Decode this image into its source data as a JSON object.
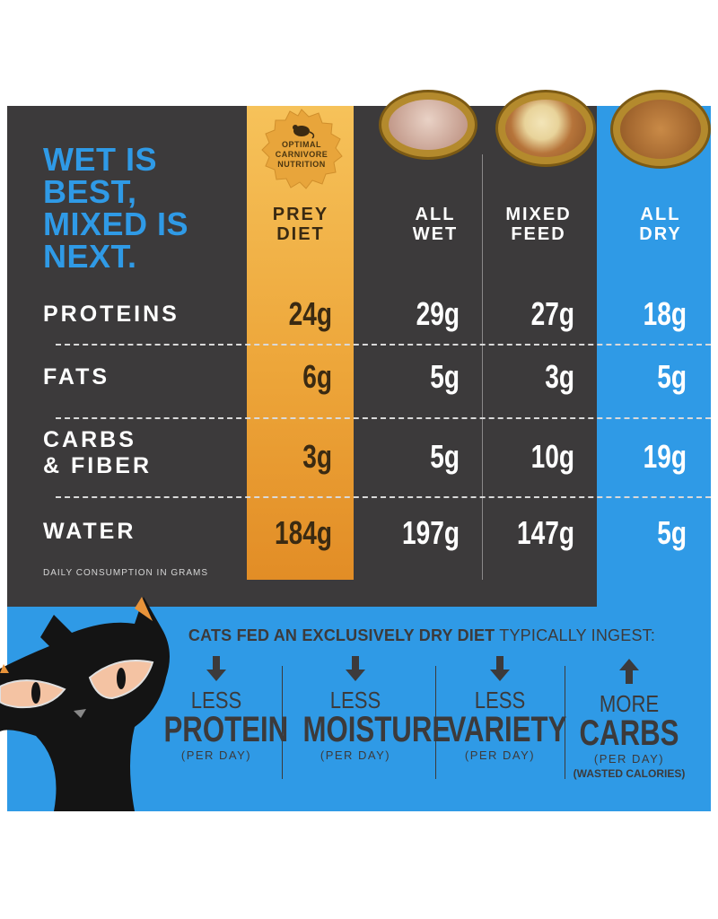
{
  "headline": "WET IS\nBEST,\nMIXED IS\nNEXT.",
  "badge": {
    "text": "OPTIMAL\nCARNIVORE\nNUTRITION",
    "icon": "mouse-icon"
  },
  "colors": {
    "blue": "#2f9ae6",
    "dark": "#3c3a3b",
    "gold": "#eda63a"
  },
  "chart_data": {
    "type": "table",
    "columns": [
      "PREY\nDIET",
      "ALL\nWET",
      "MIXED\nFEED",
      "ALL\nDRY"
    ],
    "rows": [
      {
        "label": "PROTEINS",
        "values": [
          "24g",
          "29g",
          "27g",
          "18g"
        ]
      },
      {
        "label": "FATS",
        "values": [
          "6g",
          "5g",
          "3g",
          "5g"
        ]
      },
      {
        "label": "CARBS\n& FIBER",
        "values": [
          "3g",
          "5g",
          "10g",
          "19g"
        ]
      },
      {
        "label": "WATER",
        "values": [
          "184g",
          "197g",
          "147g",
          "5g"
        ]
      }
    ],
    "note": "DAILY CONSUMPTION IN GRAMS"
  },
  "ingest": {
    "bold": "CATS FED AN EXCLUSIVELY DRY DIET",
    "light": " TYPICALLY INGEST:"
  },
  "effects": [
    {
      "arrow": "down",
      "small": "LESS",
      "big": "PROTEIN",
      "sub": "(PER DAY)",
      "extra": ""
    },
    {
      "arrow": "down",
      "small": "LESS",
      "big": "MOISTURE",
      "sub": "(PER DAY)",
      "extra": ""
    },
    {
      "arrow": "down",
      "small": "LESS",
      "big": "VARIETY",
      "sub": "(PER DAY)",
      "extra": ""
    },
    {
      "arrow": "up",
      "small": "MORE",
      "big": "CARBS",
      "sub": "(PER DAY)",
      "extra": "(WASTED CALORIES)"
    }
  ]
}
